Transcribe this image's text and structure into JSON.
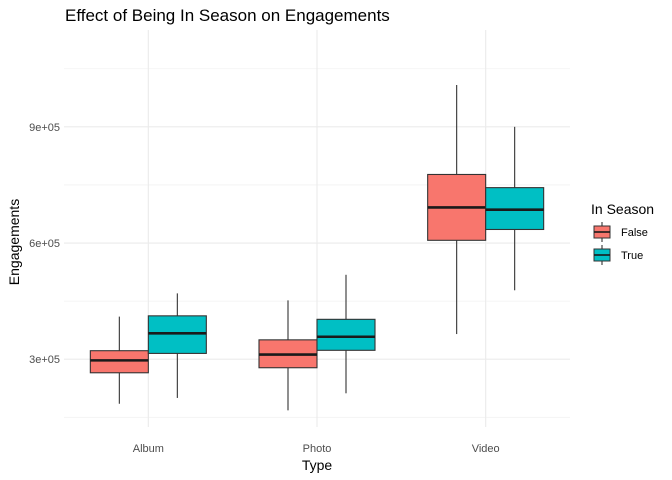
{
  "chart_data": {
    "type": "boxplot",
    "title": "Effect of Being In Season on Engagements",
    "xlabel": "Type",
    "ylabel": "Engagements",
    "categories": [
      "Album",
      "Photo",
      "Video"
    ],
    "y_ticks": [
      {
        "value": 300000,
        "label": "3e+05"
      },
      {
        "value": 600000,
        "label": "6e+05"
      },
      {
        "value": 900000,
        "label": "9e+05"
      }
    ],
    "ylim": [
      125000,
      1150000
    ],
    "grid": true,
    "legend": {
      "title": "In Season",
      "placement": "right"
    },
    "series": [
      {
        "name": "False",
        "color": "#F8766D",
        "boxes": [
          {
            "category": "Album",
            "min": 185000,
            "q1": 265000,
            "median": 297000,
            "q3": 322000,
            "max": 410000
          },
          {
            "category": "Photo",
            "min": 168000,
            "q1": 278000,
            "median": 312000,
            "q3": 350000,
            "max": 452000
          },
          {
            "category": "Video",
            "min": 365000,
            "q1": 607000,
            "median": 692000,
            "q3": 777000,
            "max": 1008000
          }
        ]
      },
      {
        "name": "True",
        "color": "#00BFC4",
        "boxes": [
          {
            "category": "Album",
            "min": 200000,
            "q1": 315000,
            "median": 367000,
            "q3": 412000,
            "max": 470000
          },
          {
            "category": "Photo",
            "min": 212000,
            "q1": 323000,
            "median": 358000,
            "q3": 403000,
            "max": 518000
          },
          {
            "category": "Video",
            "min": 478000,
            "q1": 635000,
            "median": 686000,
            "q3": 743000,
            "max": 900000
          }
        ]
      }
    ]
  }
}
